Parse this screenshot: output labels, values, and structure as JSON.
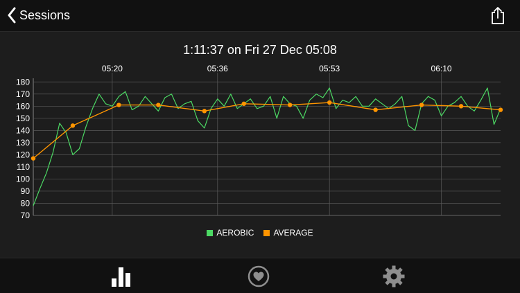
{
  "navbar": {
    "back_label": "Sessions",
    "back_icon": "chevron-left-icon",
    "share_icon": "share-icon"
  },
  "chart_data": {
    "type": "line",
    "title": "1:11:37 on Fri 27 Dec 05:08",
    "x_tick_labels": [
      "05:20",
      "05:36",
      "05:53",
      "06:10"
    ],
    "x_range": [
      "05:08",
      "06:19"
    ],
    "y_ticks": [
      70,
      80,
      90,
      100,
      110,
      120,
      130,
      140,
      150,
      160,
      170,
      180
    ],
    "ylim": [
      70,
      183
    ],
    "grid": true,
    "legend_position": "bottom",
    "series": [
      {
        "name": "AEROBIC",
        "color": "#4cd964",
        "x": [
          "05:08",
          "05:09",
          "05:10",
          "05:11",
          "05:12",
          "05:13",
          "05:14",
          "05:15",
          "05:16",
          "05:17",
          "05:18",
          "05:19",
          "05:20",
          "05:21",
          "05:22",
          "05:23",
          "05:24",
          "05:25",
          "05:26",
          "05:27",
          "05:28",
          "05:29",
          "05:30",
          "05:31",
          "05:32",
          "05:33",
          "05:34",
          "05:35",
          "05:36",
          "05:37",
          "05:38",
          "05:39",
          "05:40",
          "05:41",
          "05:42",
          "05:43",
          "05:44",
          "05:45",
          "05:46",
          "05:47",
          "05:48",
          "05:49",
          "05:50",
          "05:51",
          "05:52",
          "05:53",
          "05:54",
          "05:55",
          "05:56",
          "05:57",
          "05:58",
          "05:59",
          "06:00",
          "06:01",
          "06:02",
          "06:03",
          "06:04",
          "06:05",
          "06:06",
          "06:07",
          "06:08",
          "06:09",
          "06:10",
          "06:11",
          "06:12",
          "06:13",
          "06:14",
          "06:15",
          "06:16",
          "06:17",
          "06:18",
          "06:19"
        ],
        "values": [
          78,
          92,
          105,
          122,
          146,
          138,
          120,
          125,
          143,
          158,
          170,
          162,
          160,
          168,
          172,
          157,
          160,
          168,
          162,
          156,
          167,
          170,
          158,
          162,
          164,
          148,
          142,
          158,
          166,
          160,
          170,
          158,
          162,
          166,
          158,
          160,
          168,
          150,
          168,
          162,
          160,
          150,
          165,
          170,
          167,
          175,
          158,
          165,
          163,
          168,
          160,
          160,
          166,
          162,
          158,
          162,
          168,
          144,
          140,
          162,
          168,
          165,
          152,
          160,
          163,
          168,
          160,
          156,
          165,
          175,
          145,
          158
        ]
      },
      {
        "name": "AVERAGE",
        "color": "#ff9500",
        "x": [
          "05:08",
          "05:14",
          "05:21",
          "05:27",
          "05:34",
          "05:40",
          "05:47",
          "05:53",
          "05:60",
          "06:07",
          "06:13",
          "06:19"
        ],
        "values": [
          117,
          144,
          161,
          161,
          156,
          162,
          161,
          163,
          157,
          161,
          160,
          157
        ]
      }
    ]
  },
  "tabbar": {
    "tabs": [
      {
        "icon": "bar-chart-icon",
        "active": true
      },
      {
        "icon": "heart-icon",
        "active": false
      },
      {
        "icon": "gear-icon",
        "active": false
      }
    ]
  },
  "colors": {
    "background": "#1d1d1d",
    "bars": "#111111",
    "grid": "#666666",
    "active_tab": "#ffffff",
    "inactive_tab": "#8e8e8e"
  }
}
